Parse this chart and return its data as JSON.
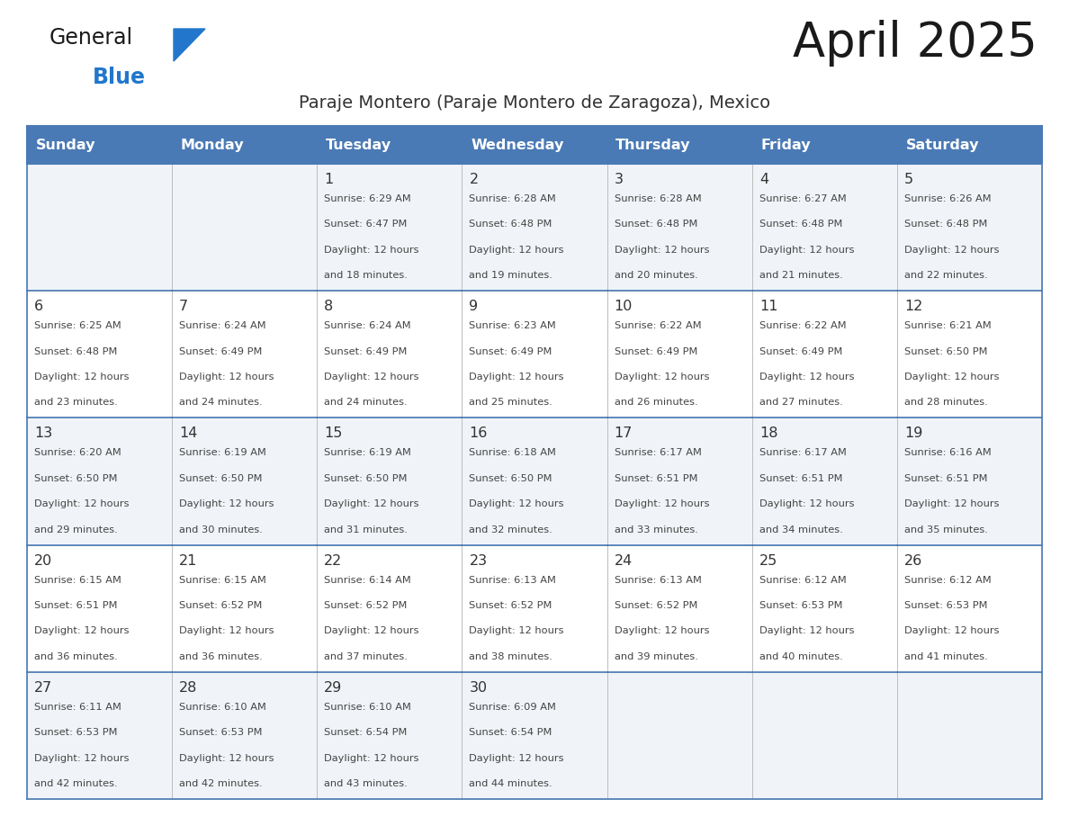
{
  "title": "April 2025",
  "subtitle": "Paraje Montero (Paraje Montero de Zaragoza), Mexico",
  "days_of_week": [
    "Sunday",
    "Monday",
    "Tuesday",
    "Wednesday",
    "Thursday",
    "Friday",
    "Saturday"
  ],
  "header_bg_color": "#4a7ab5",
  "header_text_color": "#ffffff",
  "cell_bg_light": "#f0f4f8",
  "cell_bg_white": "#ffffff",
  "cell_border_color": "#4a7ab5",
  "cell_inner_border": "#bbbbbb",
  "title_color": "#1a1a1a",
  "subtitle_color": "#333333",
  "day_number_color": "#333333",
  "cell_text_color": "#444444",
  "logo_text_color": "#1a1a1a",
  "logo_blue_color": "#2277cc",
  "logo_triangle_color": "#2277cc",
  "calendar_data": [
    [
      null,
      null,
      {
        "day": 1,
        "sunrise": "6:29 AM",
        "sunset": "6:47 PM",
        "daylight_mins": "18"
      },
      {
        "day": 2,
        "sunrise": "6:28 AM",
        "sunset": "6:48 PM",
        "daylight_mins": "19"
      },
      {
        "day": 3,
        "sunrise": "6:28 AM",
        "sunset": "6:48 PM",
        "daylight_mins": "20"
      },
      {
        "day": 4,
        "sunrise": "6:27 AM",
        "sunset": "6:48 PM",
        "daylight_mins": "21"
      },
      {
        "day": 5,
        "sunrise": "6:26 AM",
        "sunset": "6:48 PM",
        "daylight_mins": "22"
      }
    ],
    [
      {
        "day": 6,
        "sunrise": "6:25 AM",
        "sunset": "6:48 PM",
        "daylight_mins": "23"
      },
      {
        "day": 7,
        "sunrise": "6:24 AM",
        "sunset": "6:49 PM",
        "daylight_mins": "24"
      },
      {
        "day": 8,
        "sunrise": "6:24 AM",
        "sunset": "6:49 PM",
        "daylight_mins": "24"
      },
      {
        "day": 9,
        "sunrise": "6:23 AM",
        "sunset": "6:49 PM",
        "daylight_mins": "25"
      },
      {
        "day": 10,
        "sunrise": "6:22 AM",
        "sunset": "6:49 PM",
        "daylight_mins": "26"
      },
      {
        "day": 11,
        "sunrise": "6:22 AM",
        "sunset": "6:49 PM",
        "daylight_mins": "27"
      },
      {
        "day": 12,
        "sunrise": "6:21 AM",
        "sunset": "6:50 PM",
        "daylight_mins": "28"
      }
    ],
    [
      {
        "day": 13,
        "sunrise": "6:20 AM",
        "sunset": "6:50 PM",
        "daylight_mins": "29"
      },
      {
        "day": 14,
        "sunrise": "6:19 AM",
        "sunset": "6:50 PM",
        "daylight_mins": "30"
      },
      {
        "day": 15,
        "sunrise": "6:19 AM",
        "sunset": "6:50 PM",
        "daylight_mins": "31"
      },
      {
        "day": 16,
        "sunrise": "6:18 AM",
        "sunset": "6:50 PM",
        "daylight_mins": "32"
      },
      {
        "day": 17,
        "sunrise": "6:17 AM",
        "sunset": "6:51 PM",
        "daylight_mins": "33"
      },
      {
        "day": 18,
        "sunrise": "6:17 AM",
        "sunset": "6:51 PM",
        "daylight_mins": "34"
      },
      {
        "day": 19,
        "sunrise": "6:16 AM",
        "sunset": "6:51 PM",
        "daylight_mins": "35"
      }
    ],
    [
      {
        "day": 20,
        "sunrise": "6:15 AM",
        "sunset": "6:51 PM",
        "daylight_mins": "36"
      },
      {
        "day": 21,
        "sunrise": "6:15 AM",
        "sunset": "6:52 PM",
        "daylight_mins": "36"
      },
      {
        "day": 22,
        "sunrise": "6:14 AM",
        "sunset": "6:52 PM",
        "daylight_mins": "37"
      },
      {
        "day": 23,
        "sunrise": "6:13 AM",
        "sunset": "6:52 PM",
        "daylight_mins": "38"
      },
      {
        "day": 24,
        "sunrise": "6:13 AM",
        "sunset": "6:52 PM",
        "daylight_mins": "39"
      },
      {
        "day": 25,
        "sunrise": "6:12 AM",
        "sunset": "6:53 PM",
        "daylight_mins": "40"
      },
      {
        "day": 26,
        "sunrise": "6:12 AM",
        "sunset": "6:53 PM",
        "daylight_mins": "41"
      }
    ],
    [
      {
        "day": 27,
        "sunrise": "6:11 AM",
        "sunset": "6:53 PM",
        "daylight_mins": "42"
      },
      {
        "day": 28,
        "sunrise": "6:10 AM",
        "sunset": "6:53 PM",
        "daylight_mins": "42"
      },
      {
        "day": 29,
        "sunrise": "6:10 AM",
        "sunset": "6:54 PM",
        "daylight_mins": "43"
      },
      {
        "day": 30,
        "sunrise": "6:09 AM",
        "sunset": "6:54 PM",
        "daylight_mins": "44"
      },
      null,
      null,
      null
    ]
  ]
}
